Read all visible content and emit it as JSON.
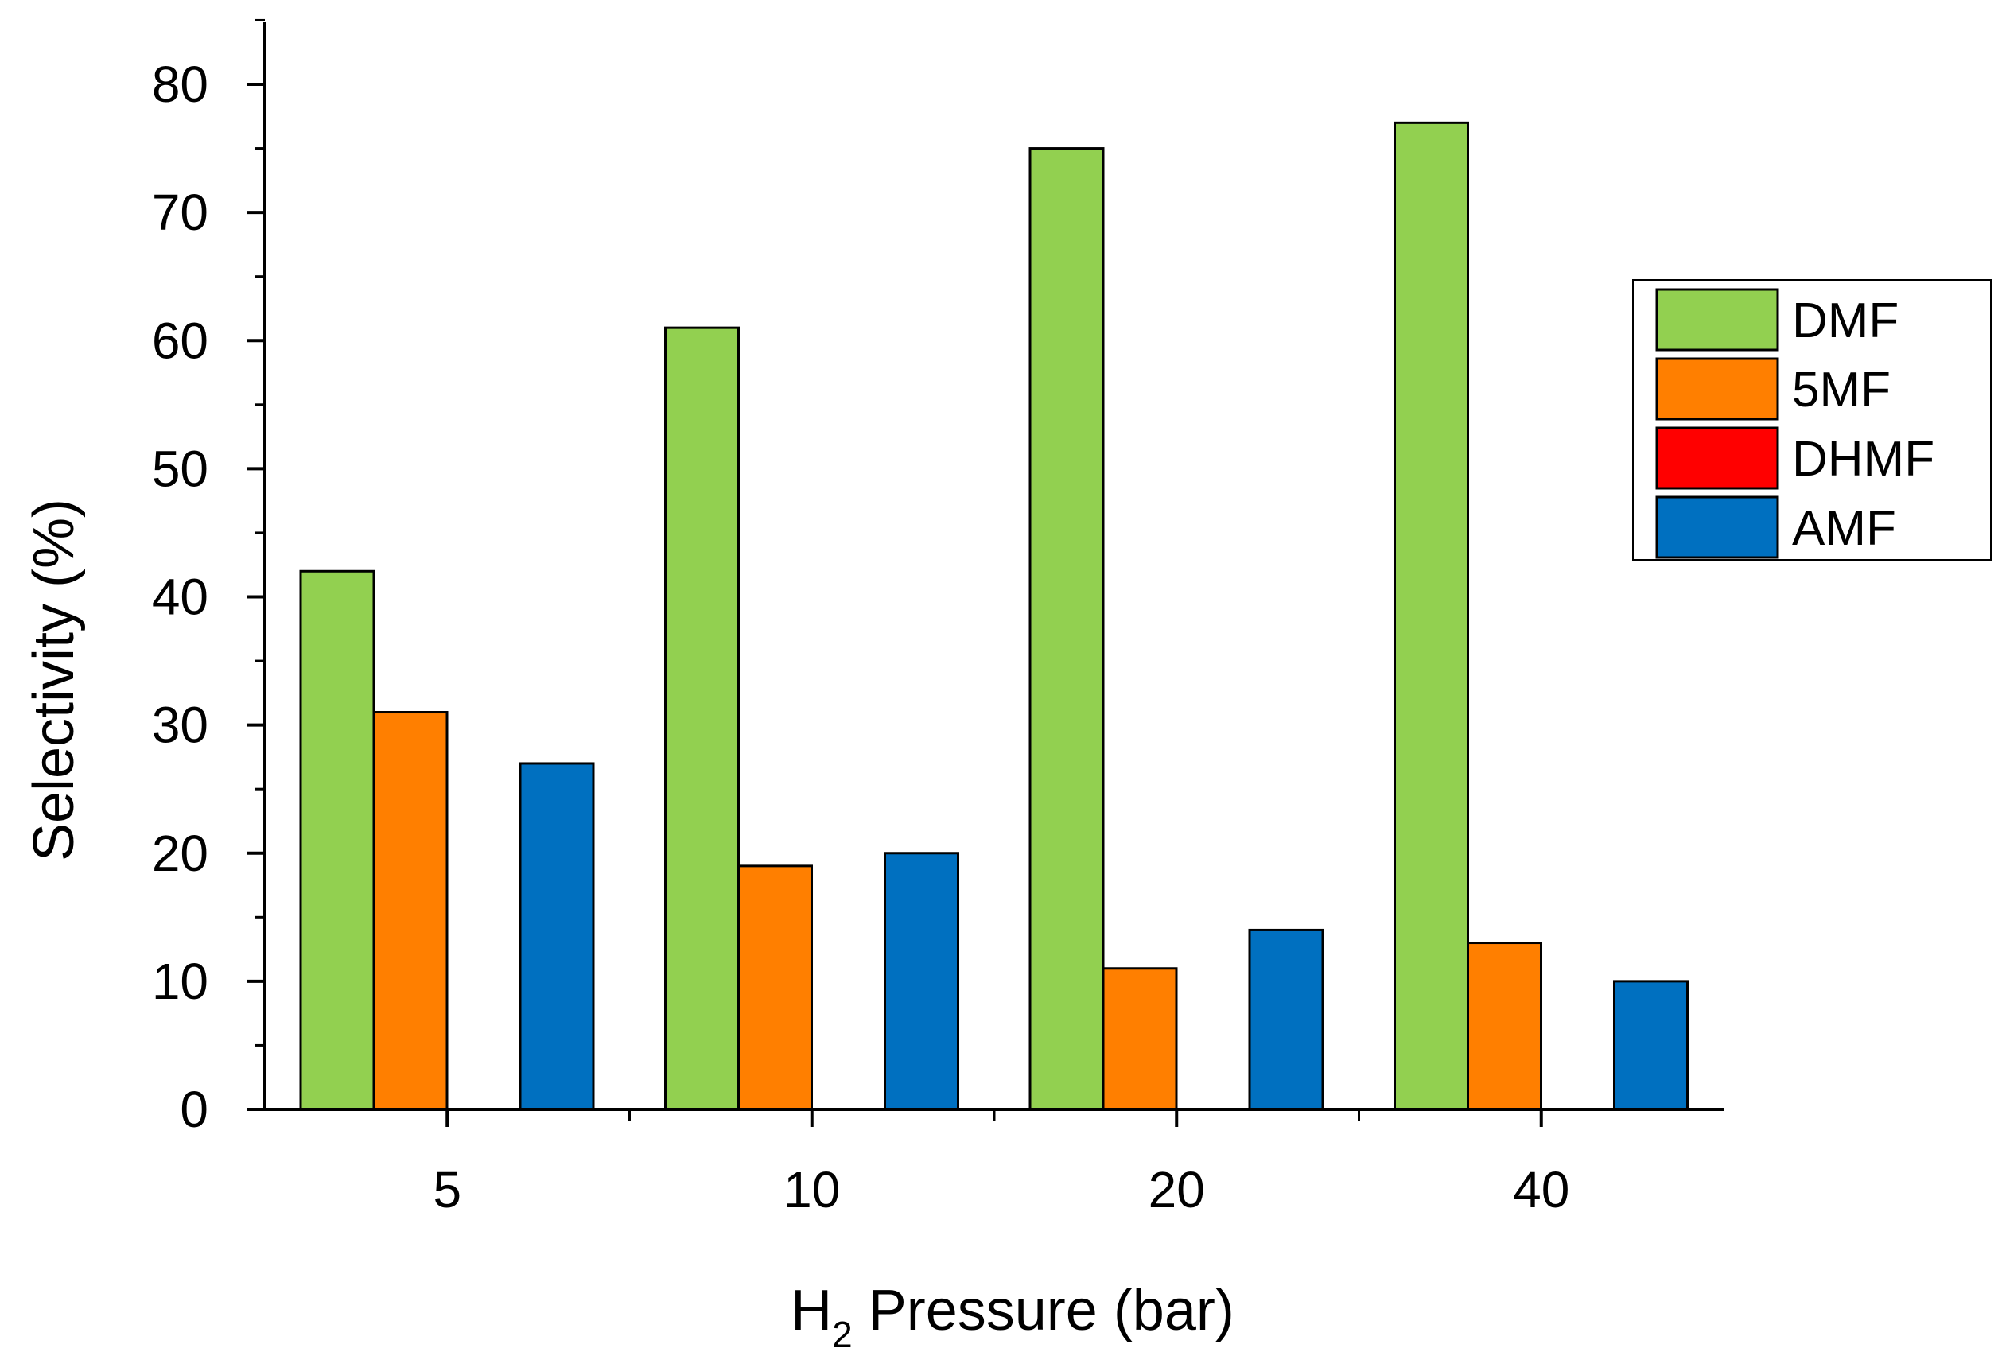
{
  "chart_data": {
    "type": "bar",
    "title": "",
    "xlabel_main": "H",
    "xlabel_sub": "2",
    "xlabel_rest": " Pressure (bar)",
    "ylabel": "Selectivity (%)",
    "categories": [
      "5",
      "10",
      "20",
      "40"
    ],
    "ylim": [
      0,
      85
    ],
    "yticks": [
      0,
      10,
      20,
      30,
      40,
      50,
      60,
      70,
      80
    ],
    "series": [
      {
        "name": "DMF",
        "color": "#92d050",
        "values": [
          42,
          61,
          75,
          77
        ]
      },
      {
        "name": "5MF",
        "color": "#ff7f00",
        "values": [
          31,
          19,
          11,
          13
        ]
      },
      {
        "name": "DHMF",
        "color": "#ff0000",
        "values": [
          0,
          0,
          0,
          0
        ]
      },
      {
        "name": "AMF",
        "color": "#0070c0",
        "values": [
          27,
          20,
          14,
          10
        ]
      }
    ],
    "legend_position": "right",
    "grid": false
  }
}
